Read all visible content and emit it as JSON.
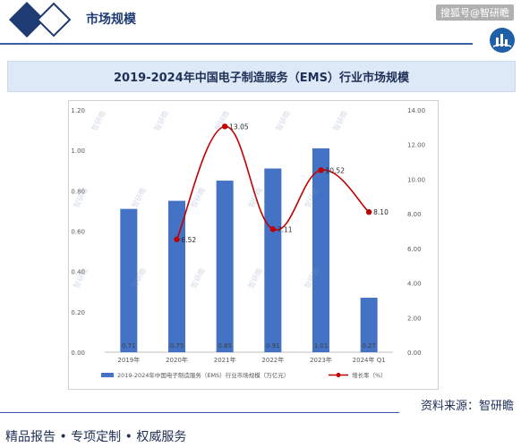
{
  "header": {
    "title": "市场规模",
    "watermark": "搜狐号@智研瞻"
  },
  "chart_title": "2019-2024年中国电子制造服务（EMS）行业市场规模",
  "source": "资料来源：智研瞻",
  "slogan": "精品报告 •  专项定制 • 权威服务",
  "colors": {
    "bar": "#4472c4",
    "line": "#c00000",
    "brand": "#1f3b73",
    "title_bar": "#dde9f7"
  },
  "chart_data": {
    "type": "bar",
    "categories": [
      "2019年",
      "2020年",
      "2021年",
      "2022年",
      "2023年",
      "2024年 Q1"
    ],
    "series": [
      {
        "name": "2019-2024年中国电子制造服务（EMS）行业市场规模（万亿元）",
        "type": "bar",
        "axis": "left",
        "values": [
          0.71,
          0.75,
          0.85,
          0.91,
          1.01,
          0.27
        ],
        "labels": [
          "0.71",
          "0.75",
          "0.85",
          "0.91",
          "1.01",
          "0.27"
        ]
      },
      {
        "name": "增长率（%）",
        "type": "line",
        "axis": "right",
        "values": [
          null,
          6.52,
          13.05,
          7.11,
          10.52,
          8.1
        ],
        "labels": [
          "",
          "6.52",
          "13.05",
          "7.11",
          "10.52",
          "8.10"
        ]
      }
    ],
    "y_left": {
      "range": [
        0,
        1.2
      ],
      "ticks": [
        "0.00",
        "0.20",
        "0.40",
        "0.60",
        "0.80",
        "1.00",
        "1.20"
      ]
    },
    "y_right": {
      "range": [
        0,
        14
      ],
      "ticks": [
        "0.00",
        "2.00",
        "4.00",
        "6.00",
        "8.00",
        "10.00",
        "12.00",
        "14.00"
      ]
    },
    "grid": false,
    "legend": "bottom",
    "watermark_text": "智研瞻"
  }
}
